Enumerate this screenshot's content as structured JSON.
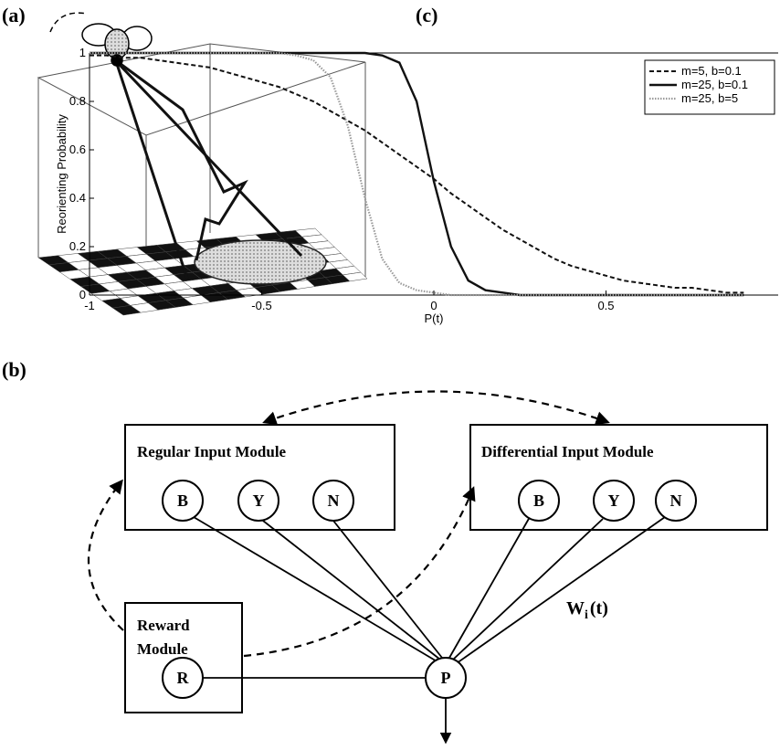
{
  "panel_labels": {
    "a": "(a)",
    "b": "(b)",
    "c": "(c)"
  },
  "chart_data": {
    "type": "line",
    "xlabel": "P(t)",
    "ylabel": "Reorienting Probability",
    "x": [
      -1,
      -0.95,
      -0.9,
      -0.85,
      -0.8,
      -0.75,
      -0.7,
      -0.65,
      -0.6,
      -0.55,
      -0.5,
      -0.45,
      -0.4,
      -0.35,
      -0.3,
      -0.25,
      -0.2,
      -0.15,
      -0.1,
      -0.05,
      0,
      0.05,
      0.1,
      0.15,
      0.2,
      0.25,
      0.3,
      0.35,
      0.4,
      0.45,
      0.5,
      0.55,
      0.6,
      0.65,
      0.7,
      0.75,
      0.8,
      0.85,
      0.9
    ],
    "series": [
      {
        "name": "m=5, b=0.1",
        "color": "#111111",
        "dash": "dashed",
        "values": [
          0.99,
          0.99,
          0.98,
          0.98,
          0.97,
          0.96,
          0.95,
          0.94,
          0.92,
          0.9,
          0.88,
          0.86,
          0.83,
          0.8,
          0.76,
          0.72,
          0.68,
          0.63,
          0.58,
          0.53,
          0.48,
          0.42,
          0.37,
          0.32,
          0.27,
          0.23,
          0.19,
          0.15,
          0.12,
          0.1,
          0.08,
          0.06,
          0.05,
          0.04,
          0.03,
          0.03,
          0.02,
          0.01,
          0.01
        ]
      },
      {
        "name": "m=25, b=0.1",
        "color": "#111111",
        "dash": "solid",
        "values": [
          1,
          1,
          1,
          1,
          1,
          1,
          1,
          1,
          1,
          1,
          1,
          1,
          1,
          1,
          1,
          1,
          1,
          0.99,
          0.96,
          0.8,
          0.47,
          0.2,
          0.06,
          0.02,
          0.01,
          0,
          0,
          0,
          0,
          0,
          0,
          0,
          0,
          0,
          0,
          0,
          0,
          0,
          0
        ]
      },
      {
        "name": "m=25, b=5",
        "color": "#999999",
        "dash": "dotted",
        "values": [
          1,
          1,
          1,
          1,
          1,
          1,
          1,
          1,
          1,
          1,
          1,
          1,
          0.99,
          0.97,
          0.9,
          0.7,
          0.4,
          0.15,
          0.05,
          0.02,
          0.01,
          0,
          0,
          0,
          0,
          0,
          0,
          0,
          0,
          0,
          0,
          0,
          0,
          0,
          0,
          0,
          0,
          0,
          0
        ]
      }
    ],
    "xlim": [
      -1,
      1
    ],
    "ylim": [
      0,
      1
    ],
    "xticks": [
      -1,
      -0.5,
      0,
      0.5
    ],
    "yticks": [
      0,
      0.2,
      0.4,
      0.6,
      0.8,
      1
    ],
    "legend": "upper right"
  },
  "diagram": {
    "regular_module": {
      "title": "Regular Input Module",
      "nodes": [
        "B",
        "Y",
        "N"
      ]
    },
    "differential_module": {
      "title": "Differential Input Module",
      "nodes": [
        "B",
        "Y",
        "N"
      ]
    },
    "reward_module": {
      "title_lines": [
        "Reward",
        "Module"
      ],
      "node": "R"
    },
    "output_node": "P",
    "weight_label": {
      "base": "W",
      "sub": "i",
      "arg": "(t)"
    }
  }
}
